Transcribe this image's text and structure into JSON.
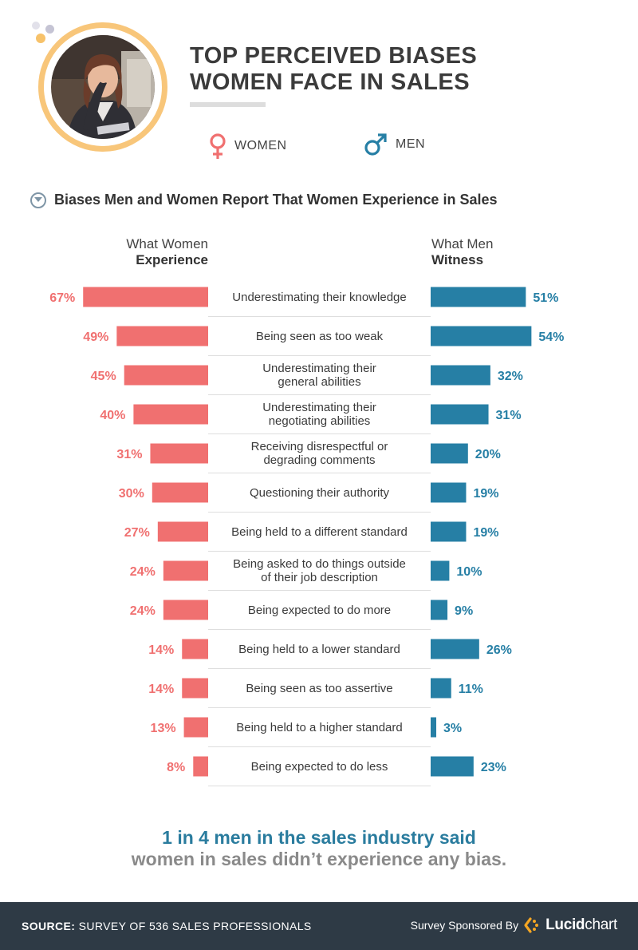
{
  "header": {
    "title_line1": "TOP PERCEIVED BIASES",
    "title_line2": "WOMEN FACE IN SALES"
  },
  "legend": {
    "women_label": "WOMEN",
    "men_label": "MEN"
  },
  "section": {
    "subtitle": "Biases Men and Women Report That Women Experience in Sales"
  },
  "columns": {
    "left_top": "What Women",
    "left_bottom": "Experience",
    "right_top": "What Men",
    "right_bottom": "Witness"
  },
  "chart_data": {
    "type": "bar",
    "orientation": "horizontal-butterfly",
    "value_unit": "%",
    "xlim": [
      0,
      100
    ],
    "categories": [
      [
        "Underestimating their knowledge"
      ],
      [
        "Being seen as too weak"
      ],
      [
        "Underestimating their",
        "general abilities"
      ],
      [
        "Underestimating their",
        "negotiating abilities"
      ],
      [
        "Receiving disrespectful or",
        "degrading comments"
      ],
      [
        "Questioning their authority"
      ],
      [
        "Being held to a different standard"
      ],
      [
        "Being asked to do things outside",
        "of their job description"
      ],
      [
        "Being expected to do more"
      ],
      [
        "Being held to a lower standard"
      ],
      [
        "Being seen as too assertive"
      ],
      [
        "Being held to a higher standard"
      ],
      [
        "Being expected to do less"
      ]
    ],
    "series": [
      {
        "values": [
          67,
          49,
          45,
          40,
          31,
          30,
          27,
          24,
          24,
          14,
          14,
          13,
          8
        ],
        "color": "#f07070",
        "side": "left"
      },
      {
        "values": [
          51,
          54,
          32,
          31,
          20,
          19,
          19,
          10,
          9,
          26,
          11,
          3,
          23
        ],
        "color": "#267fa5",
        "side": "right"
      }
    ]
  },
  "footnote": {
    "line1": "1 in 4 men in the sales industry said",
    "line2": "women in sales didn’t experience any bias."
  },
  "footer": {
    "source_label": "SOURCE:",
    "source_text": "SURVEY OF 536 SALES PROFESSIONALS",
    "sponsor_text": "Survey Sponsored By",
    "brand_bold": "Lucid",
    "brand_regular": "chart"
  },
  "colors": {
    "women": "#f07070",
    "men": "#267fa5",
    "accent_ring": "#f8c67a",
    "footer_bg": "#2e3a45"
  }
}
